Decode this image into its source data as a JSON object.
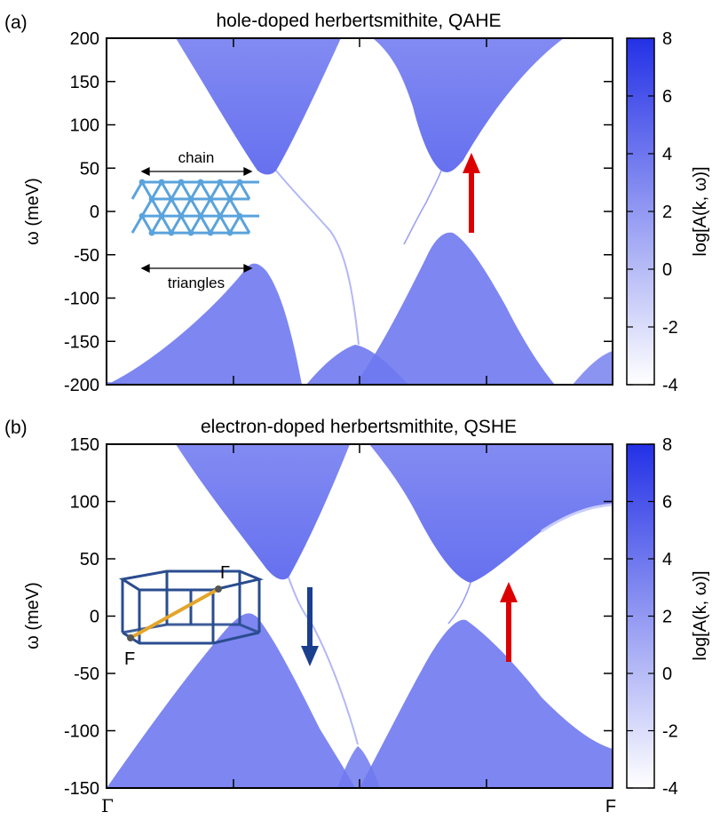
{
  "chart_data": [
    {
      "type": "heatmap",
      "panel": "(a)",
      "title": "hole-doped herbertsmithite, QAHE",
      "ylabel": "ω (meV)",
      "ylim": [
        -200,
        200
      ],
      "yticks": [
        "200",
        "150",
        "100",
        "50",
        "0",
        "-50",
        "-100",
        "-150",
        "-200"
      ],
      "colorbar": {
        "label": "log[A(k, ω)]",
        "range": [
          -4,
          8
        ],
        "ticks": [
          "8",
          "6",
          "4",
          "2",
          "0",
          "-2",
          "-4"
        ],
        "low_color": "#ffffff",
        "high_color": "#2431e6"
      },
      "inset": {
        "top_label": "chain",
        "bottom_label": "triangles"
      },
      "arrows": [
        {
          "direction": "up",
          "color": "#dd0000"
        }
      ]
    },
    {
      "type": "heatmap",
      "panel": "(b)",
      "title": "electron-doped herbertsmithite, QSHE",
      "ylabel": "ω (meV)",
      "ylim": [
        -150,
        150
      ],
      "yticks": [
        "150",
        "100",
        "50",
        "0",
        "-50",
        "-100",
        "-150"
      ],
      "xtick_labels": [
        "Γ",
        "F"
      ],
      "colorbar": {
        "label": "log[A(k, ω)]",
        "range": [
          -4,
          8
        ],
        "ticks": [
          "8",
          "6",
          "4",
          "2",
          "0",
          "-2",
          "-4"
        ],
        "low_color": "#ffffff",
        "high_color": "#2431e6"
      },
      "inset": {
        "gamma_label": "Γ",
        "f_label": "F"
      },
      "arrows": [
        {
          "direction": "down",
          "color": "#1b3f8f"
        },
        {
          "direction": "up",
          "color": "#dd0000"
        }
      ]
    }
  ],
  "colors": {
    "band": "#6a74ef",
    "band_light": "#c9cdfb",
    "arrow_red": "#dd0000",
    "arrow_blue": "#1b3f8f",
    "inset_lattice": "#5aa3dc",
    "inset_bz": "#2a4c8f",
    "inset_path": "#e3a52a"
  }
}
